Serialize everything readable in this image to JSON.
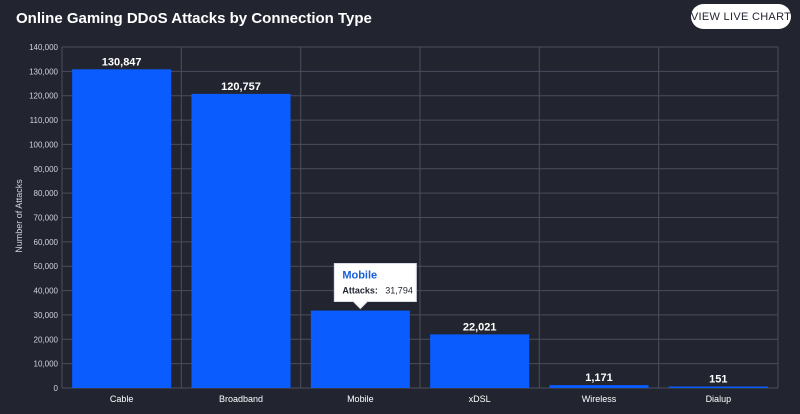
{
  "header": {
    "title": "Online Gaming DDoS Attacks by Connection Type",
    "live_button_label": "VIEW LIVE CHART"
  },
  "colors": {
    "background": "#222530",
    "bar": "#0a5cff",
    "grid": "#4a4e5c"
  },
  "tooltip": {
    "title": "Mobile",
    "key": "Attacks:",
    "value": "31,794",
    "category": "Mobile"
  },
  "chart_data": {
    "type": "bar",
    "title": "Online Gaming DDoS Attacks by Connection Type",
    "xlabel": "",
    "ylabel": "Number of Attacks",
    "categories": [
      "Cable",
      "Broadband",
      "Mobile",
      "xDSL",
      "Wireless",
      "Dialup"
    ],
    "values": [
      130847,
      120757,
      31794,
      22021,
      1171,
      151
    ],
    "value_labels": [
      "130,847",
      "120,757",
      "",
      "22,021",
      "1,171",
      "151"
    ],
    "ylim": [
      0,
      140000
    ],
    "yticks": [
      0,
      10000,
      20000,
      30000,
      40000,
      50000,
      60000,
      70000,
      80000,
      90000,
      100000,
      110000,
      120000,
      130000,
      140000
    ],
    "ytick_labels": [
      "0",
      "10,000",
      "20,000",
      "30,000",
      "40,000",
      "50,000",
      "60,000",
      "70,000",
      "80,000",
      "90,000",
      "100,000",
      "110,000",
      "120,000",
      "130,000",
      "140,000"
    ],
    "grid": true,
    "legend": "none"
  }
}
